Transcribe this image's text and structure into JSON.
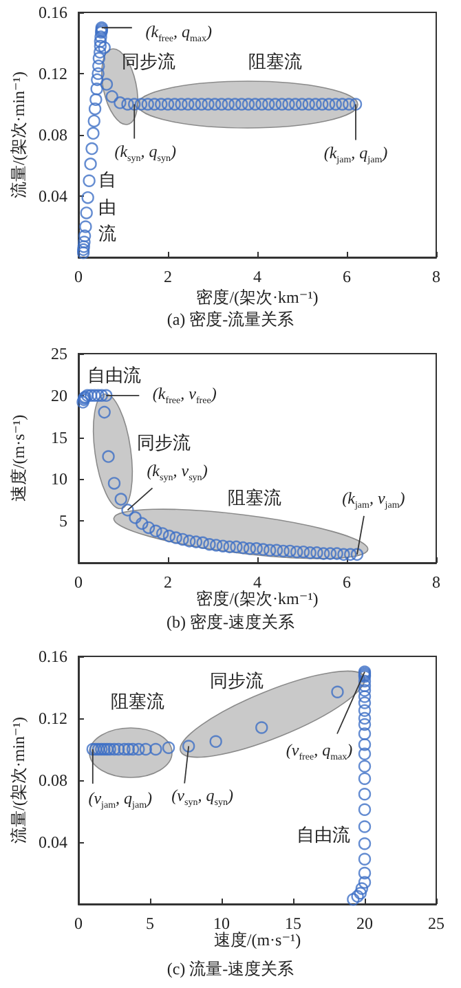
{
  "chart_data": [
    {
      "type": "scatter",
      "title": "(a) 密度-流量关系",
      "xlabel": "密度/(架次·km⁻¹)",
      "ylabel": "流量/(架次·min⁻¹)",
      "marker": "circle",
      "grid": false,
      "xlim": [
        0,
        8
      ],
      "xticks": [
        0,
        2,
        4,
        6,
        8
      ],
      "ylim": [
        0,
        0.16
      ],
      "yticks": [
        0.04,
        0.08,
        0.12,
        0.16
      ],
      "annotations": [
        {
          "text": "(k$_{free}$, q$_{max}$)",
          "x": 0.52,
          "y": 0.15
        },
        "同步流",
        "阻塞流",
        {
          "text": "(k$_{syn}$, q$_{syn}$)",
          "x": 1.25,
          "y": 0.1
        },
        {
          "text": "(k$_{jam}$, q$_{jam}$)",
          "x": 6.2,
          "y": 0.1
        },
        "自由流"
      ],
      "series": [
        {
          "color": "#3d6fc6",
          "x": [
            0.11,
            0.11,
            0.12,
            0.13,
            0.14,
            0.16,
            0.18,
            0.21,
            0.24,
            0.27,
            0.3,
            0.33,
            0.35,
            0.37,
            0.39,
            0.41,
            0.42,
            0.44,
            0.45,
            0.46,
            0.48,
            0.49,
            0.49,
            0.5,
            0.51,
            0.52,
            0.52,
            0.52,
            0.58,
            0.63,
            0.75,
            0.93,
            1.1,
            1.25,
            1.4,
            1.55,
            1.7,
            1.85,
            2.0,
            2.15,
            2.3,
            2.45,
            2.6,
            2.75,
            2.9,
            3.05,
            3.2,
            3.35,
            3.5,
            3.65,
            3.8,
            3.95,
            4.1,
            4.25,
            4.4,
            4.55,
            4.7,
            4.85,
            5.0,
            5.15,
            5.3,
            5.45,
            5.6,
            5.75,
            5.9,
            6.05,
            6.2
          ],
          "values": [
            0.003,
            0.005,
            0.007,
            0.01,
            0.014,
            0.02,
            0.029,
            0.039,
            0.05,
            0.061,
            0.071,
            0.081,
            0.089,
            0.097,
            0.103,
            0.11,
            0.116,
            0.12,
            0.125,
            0.13,
            0.134,
            0.138,
            0.141,
            0.144,
            0.147,
            0.148,
            0.149,
            0.15,
            0.137,
            0.113,
            0.105,
            0.101,
            0.1,
            0.1,
            0.1,
            0.1,
            0.1,
            0.1,
            0.1,
            0.1,
            0.1,
            0.1,
            0.1,
            0.1,
            0.1,
            0.1,
            0.1,
            0.1,
            0.1,
            0.1,
            0.1,
            0.1,
            0.1,
            0.1,
            0.1,
            0.1,
            0.1,
            0.1,
            0.1,
            0.1,
            0.1,
            0.1,
            0.1,
            0.1,
            0.1,
            0.1,
            0.1
          ]
        }
      ]
    },
    {
      "type": "scatter",
      "title": "(b) 密度-速度关系",
      "xlabel": "密度/(架次·km⁻¹)",
      "ylabel": "速度/(m·s⁻¹)",
      "marker": "circle",
      "grid": false,
      "xlim": [
        0,
        8
      ],
      "xticks": [
        0,
        2,
        4,
        6,
        8
      ],
      "ylim": [
        0,
        25
      ],
      "yticks": [
        5,
        10,
        15,
        20,
        25
      ],
      "annotations": [
        "自由流",
        {
          "text": "(k$_{free}$, v$_{free}$)",
          "x": 0.62,
          "y": 20
        },
        "同步流",
        {
          "text": "(k$_{syn}$, v$_{syn}$)",
          "x": 1.1,
          "y": 6.3
        },
        "阻塞流",
        {
          "text": "(k$_{jam}$, v$_{jam}$)",
          "x": 6.23,
          "y": 1.0
        }
      ],
      "series": [
        {
          "color": "#3d6fc6",
          "x": [
            0.1,
            0.12,
            0.13,
            0.15,
            0.2,
            0.28,
            0.36,
            0.44,
            0.52,
            0.62,
            0.58,
            0.67,
            0.8,
            0.95,
            1.1,
            1.27,
            1.42,
            1.57,
            1.73,
            1.88,
            2.03,
            2.18,
            2.33,
            2.48,
            2.63,
            2.78,
            2.93,
            3.08,
            3.23,
            3.38,
            3.53,
            3.68,
            3.83,
            3.98,
            4.13,
            4.28,
            4.43,
            4.58,
            4.73,
            4.88,
            5.03,
            5.18,
            5.33,
            5.48,
            5.63,
            5.78,
            5.93,
            6.08,
            6.23
          ],
          "values": [
            19.2,
            19.5,
            19.7,
            19.8,
            20,
            20,
            20,
            20,
            20,
            20,
            18,
            12.7,
            9.5,
            7.6,
            6.3,
            5.4,
            4.7,
            4.2,
            3.8,
            3.5,
            3.2,
            3.0,
            2.8,
            2.6,
            2.5,
            2.4,
            2.2,
            2.1,
            2.0,
            1.9,
            1.9,
            1.8,
            1.7,
            1.7,
            1.6,
            1.5,
            1.5,
            1.4,
            1.4,
            1.3,
            1.3,
            1.2,
            1.2,
            1.1,
            1.1,
            1.1,
            1.0,
            1.0,
            1.0
          ]
        }
      ]
    },
    {
      "type": "scatter",
      "title": "(c) 流量-速度关系",
      "xlabel": "速度/(m·s⁻¹)",
      "ylabel": "流量/(架次·min⁻¹)",
      "marker": "circle",
      "grid": false,
      "xlim": [
        0,
        25
      ],
      "xticks": [
        0,
        5,
        10,
        15,
        20,
        25
      ],
      "ylim": [
        0,
        0.16
      ],
      "yticks": [
        0.04,
        0.08,
        0.12,
        0.16
      ],
      "annotations": [
        "阻塞流",
        "同步流",
        {
          "text": "(v$_{jam}$, q$_{jam}$)",
          "x": 1.0,
          "y": 0.1
        },
        {
          "text": "(v$_{syn}$, q$_{syn}$)",
          "x": 7.7,
          "y": 0.102
        },
        {
          "text": "(v$_{free}$, q$_{max}$)",
          "x": 20,
          "y": 0.15
        },
        "自由流"
      ],
      "series": [
        {
          "color": "#3d6fc6",
          "x": [
            19.2,
            19.5,
            19.7,
            19.8,
            20,
            20,
            20,
            20,
            20,
            20,
            20,
            20,
            20,
            20,
            20,
            20,
            20,
            20,
            20,
            20,
            20,
            20,
            20,
            20,
            20,
            20,
            20,
            20,
            18.1,
            12.8,
            9.6,
            7.7,
            6.3,
            5.4,
            4.7,
            4.2,
            3.8,
            3.5,
            3.2,
            2.8,
            2.5,
            2.2,
            2.0,
            1.8,
            1.6,
            1.4,
            1.2,
            1.0
          ],
          "values": [
            0.003,
            0.005,
            0.007,
            0.01,
            0.014,
            0.02,
            0.029,
            0.039,
            0.05,
            0.061,
            0.071,
            0.081,
            0.089,
            0.097,
            0.103,
            0.11,
            0.116,
            0.12,
            0.125,
            0.13,
            0.134,
            0.138,
            0.141,
            0.144,
            0.147,
            0.148,
            0.149,
            0.15,
            0.137,
            0.114,
            0.105,
            0.102,
            0.101,
            0.1,
            0.1,
            0.1,
            0.1,
            0.1,
            0.1,
            0.1,
            0.1,
            0.1,
            0.1,
            0.1,
            0.1,
            0.1,
            0.1,
            0.1
          ]
        }
      ]
    }
  ]
}
